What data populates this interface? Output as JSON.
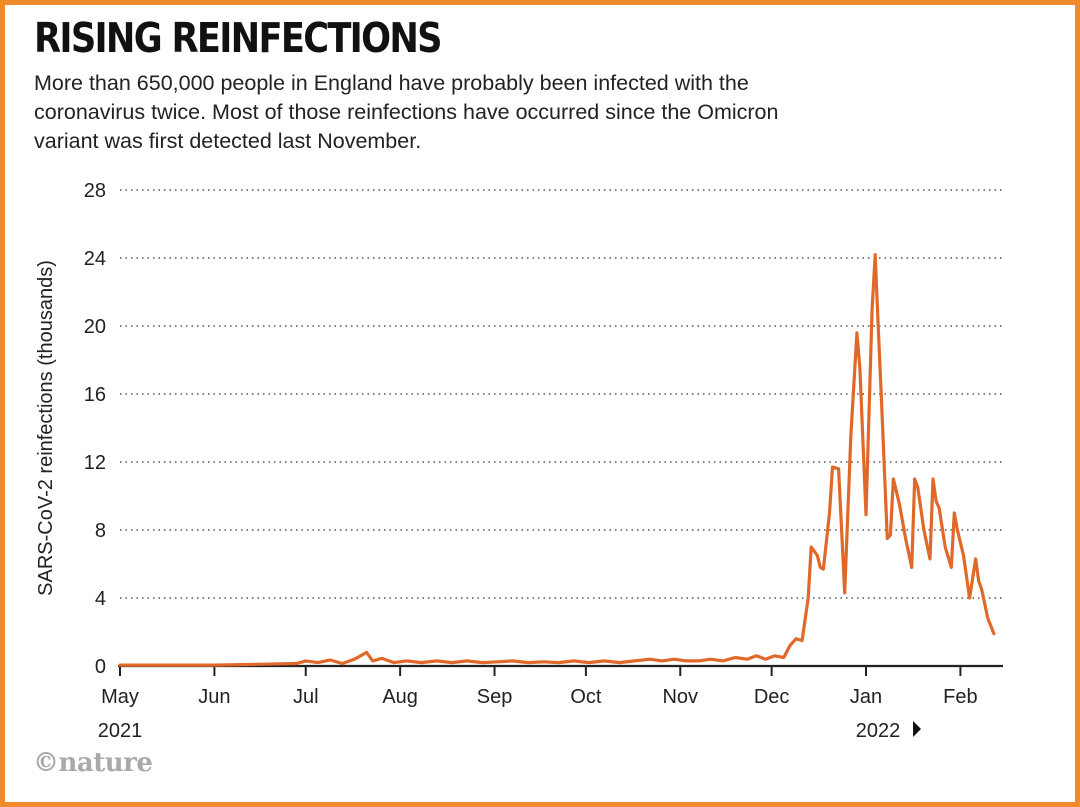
{
  "header": {
    "title": "RISING REINFECTIONS",
    "subtitle_lines": [
      "More than 650,000 people in England have probably been infected with the",
      "coronavirus twice. Most of those reinfections have occurred since the Omicron",
      "variant was first detected last November."
    ]
  },
  "footer": {
    "credit": "©nature"
  },
  "colors": {
    "line": "#e0692a",
    "grid": "#555555",
    "axis": "#222222",
    "frame": "#f08a2a"
  },
  "chart_data": {
    "type": "line",
    "title": "RISING REINFECTIONS",
    "ylabel": "SARS-CoV-2 reinfections (thousands)",
    "xlabel": "",
    "ylim": [
      0,
      28
    ],
    "yticks": [
      0,
      4,
      8,
      12,
      16,
      20,
      24,
      28
    ],
    "grid": "horizontal dotted",
    "x_range": [
      "2021-05-01",
      "2022-02-14"
    ],
    "x_ticks": [
      {
        "date": "2021-05-01",
        "label": "May"
      },
      {
        "date": "2021-06-01",
        "label": "Jun"
      },
      {
        "date": "2021-07-01",
        "label": "Jul"
      },
      {
        "date": "2021-08-01",
        "label": "Aug"
      },
      {
        "date": "2021-09-01",
        "label": "Sep"
      },
      {
        "date": "2021-10-01",
        "label": "Oct"
      },
      {
        "date": "2021-11-01",
        "label": "Nov"
      },
      {
        "date": "2021-12-01",
        "label": "Dec"
      },
      {
        "date": "2022-01-01",
        "label": "Jan"
      },
      {
        "date": "2022-02-01",
        "label": "Feb"
      }
    ],
    "year_labels": [
      {
        "date": "2021-05-01",
        "label": "2021"
      },
      {
        "date": "2022-01-01",
        "label": "2022"
      }
    ],
    "series": [
      {
        "points": [
          [
            "2021-05-01",
            0.05
          ],
          [
            "2021-05-15",
            0.05
          ],
          [
            "2021-06-01",
            0.05
          ],
          [
            "2021-06-15",
            0.1
          ],
          [
            "2021-06-28",
            0.15
          ],
          [
            "2021-07-01",
            0.3
          ],
          [
            "2021-07-05",
            0.2
          ],
          [
            "2021-07-09",
            0.35
          ],
          [
            "2021-07-13",
            0.15
          ],
          [
            "2021-07-17",
            0.4
          ],
          [
            "2021-07-19",
            0.6
          ],
          [
            "2021-07-21",
            0.8
          ],
          [
            "2021-07-23",
            0.3
          ],
          [
            "2021-07-26",
            0.45
          ],
          [
            "2021-07-30",
            0.2
          ],
          [
            "2021-08-03",
            0.3
          ],
          [
            "2021-08-08",
            0.2
          ],
          [
            "2021-08-13",
            0.3
          ],
          [
            "2021-08-18",
            0.2
          ],
          [
            "2021-08-23",
            0.3
          ],
          [
            "2021-08-28",
            0.2
          ],
          [
            "2021-09-02",
            0.25
          ],
          [
            "2021-09-07",
            0.3
          ],
          [
            "2021-09-12",
            0.2
          ],
          [
            "2021-09-17",
            0.25
          ],
          [
            "2021-09-22",
            0.2
          ],
          [
            "2021-09-27",
            0.3
          ],
          [
            "2021-10-02",
            0.2
          ],
          [
            "2021-10-07",
            0.3
          ],
          [
            "2021-10-12",
            0.2
          ],
          [
            "2021-10-17",
            0.3
          ],
          [
            "2021-10-22",
            0.4
          ],
          [
            "2021-10-26",
            0.3
          ],
          [
            "2021-10-30",
            0.4
          ],
          [
            "2021-11-03",
            0.3
          ],
          [
            "2021-11-07",
            0.3
          ],
          [
            "2021-11-11",
            0.4
          ],
          [
            "2021-11-15",
            0.3
          ],
          [
            "2021-11-19",
            0.5
          ],
          [
            "2021-11-23",
            0.4
          ],
          [
            "2021-11-26",
            0.6
          ],
          [
            "2021-11-29",
            0.4
          ],
          [
            "2021-12-02",
            0.6
          ],
          [
            "2021-12-05",
            0.5
          ],
          [
            "2021-12-07",
            1.2
          ],
          [
            "2021-12-09",
            1.6
          ],
          [
            "2021-12-11",
            1.5
          ],
          [
            "2021-12-13",
            4.0
          ],
          [
            "2021-12-14",
            7.0
          ],
          [
            "2021-12-16",
            6.5
          ],
          [
            "2021-12-17",
            5.8
          ],
          [
            "2021-12-18",
            5.7
          ],
          [
            "2021-12-20",
            9.0
          ],
          [
            "2021-12-21",
            11.7
          ],
          [
            "2021-12-23",
            11.6
          ],
          [
            "2021-12-25",
            4.3
          ],
          [
            "2021-12-27",
            13.5
          ],
          [
            "2021-12-29",
            19.6
          ],
          [
            "2021-12-30",
            17.5
          ],
          [
            "2022-01-01",
            8.9
          ],
          [
            "2022-01-03",
            21.0
          ],
          [
            "2022-01-04",
            24.2
          ],
          [
            "2022-01-05",
            20.0
          ],
          [
            "2022-01-06",
            16.0
          ],
          [
            "2022-01-08",
            7.5
          ],
          [
            "2022-01-09",
            7.7
          ],
          [
            "2022-01-10",
            11.0
          ],
          [
            "2022-01-12",
            9.5
          ],
          [
            "2022-01-14",
            7.5
          ],
          [
            "2022-01-16",
            5.8
          ],
          [
            "2022-01-17",
            11.0
          ],
          [
            "2022-01-18",
            10.5
          ],
          [
            "2022-01-20",
            8.0
          ],
          [
            "2022-01-22",
            6.3
          ],
          [
            "2022-01-23",
            11.0
          ],
          [
            "2022-01-24",
            9.7
          ],
          [
            "2022-01-25",
            9.3
          ],
          [
            "2022-01-27",
            7.0
          ],
          [
            "2022-01-29",
            5.8
          ],
          [
            "2022-01-30",
            9.0
          ],
          [
            "2022-01-31",
            8.0
          ],
          [
            "2022-02-02",
            6.5
          ],
          [
            "2022-02-04",
            4.0
          ],
          [
            "2022-02-06",
            6.3
          ],
          [
            "2022-02-07",
            5.0
          ],
          [
            "2022-02-08",
            4.5
          ],
          [
            "2022-02-10",
            2.8
          ],
          [
            "2022-02-12",
            1.9
          ]
        ]
      }
    ]
  }
}
